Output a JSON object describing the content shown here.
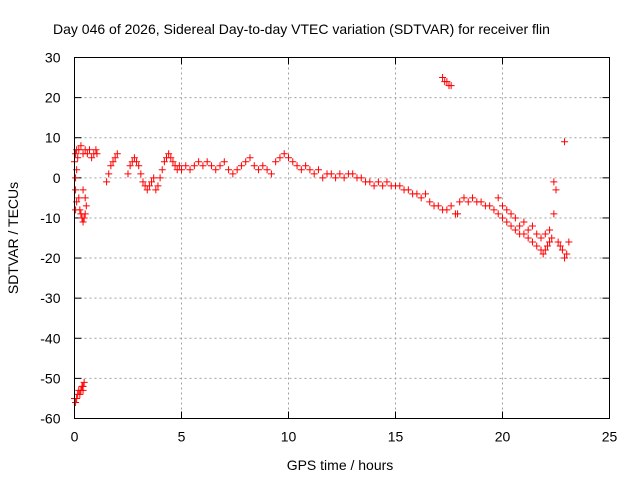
{
  "chart_data": {
    "type": "scatter",
    "title": "Day 046 of 2026, Sidereal Day-to-day VTEC variation (SDTVAR) for receiver flin",
    "xlabel": "GPS time / hours",
    "ylabel": "SDTVAR / TECUs",
    "xlim": [
      0,
      25
    ],
    "ylim": [
      -60,
      30
    ],
    "grid": true,
    "x_ticks": [
      "0",
      "5",
      "10",
      "15",
      "20",
      "25"
    ],
    "y_ticks": [
      "30",
      "20",
      "10",
      "0",
      "-10",
      "-20",
      "-30",
      "-40",
      "-50",
      "-60"
    ],
    "marker": "+",
    "color": "#ff0000",
    "series": [
      {
        "name": "SDTVAR",
        "points": [
          [
            0.0,
            4
          ],
          [
            0.05,
            6
          ],
          [
            0.1,
            7
          ],
          [
            0.15,
            5
          ],
          [
            0.05,
            0
          ],
          [
            0.05,
            -3
          ],
          [
            0.05,
            -8
          ],
          [
            0.1,
            -6
          ],
          [
            0.1,
            2
          ],
          [
            0.2,
            7
          ],
          [
            0.3,
            8
          ],
          [
            0.4,
            6
          ],
          [
            0.5,
            7
          ],
          [
            0.6,
            6
          ],
          [
            0.7,
            7
          ],
          [
            0.8,
            5
          ],
          [
            0.9,
            6
          ],
          [
            1.0,
            7
          ],
          [
            1.05,
            6
          ],
          [
            0.2,
            -5
          ],
          [
            0.25,
            -8
          ],
          [
            0.3,
            -9
          ],
          [
            0.35,
            -10
          ],
          [
            0.4,
            -11
          ],
          [
            0.45,
            -10
          ],
          [
            0.5,
            -9
          ],
          [
            0.55,
            -7
          ],
          [
            0.5,
            -5
          ],
          [
            0.4,
            -3
          ],
          [
            0.0,
            -55
          ],
          [
            0.05,
            -56
          ],
          [
            0.1,
            -55
          ],
          [
            0.15,
            -54
          ],
          [
            0.2,
            -53
          ],
          [
            0.25,
            -54
          ],
          [
            0.3,
            -53
          ],
          [
            0.35,
            -52
          ],
          [
            0.4,
            -52
          ],
          [
            0.45,
            -51
          ],
          [
            0.4,
            -53
          ],
          [
            1.5,
            -1
          ],
          [
            1.6,
            1
          ],
          [
            1.7,
            3
          ],
          [
            1.8,
            4
          ],
          [
            1.9,
            5
          ],
          [
            2.0,
            6
          ],
          [
            2.5,
            1
          ],
          [
            2.6,
            3
          ],
          [
            2.7,
            4
          ],
          [
            2.8,
            5
          ],
          [
            2.9,
            4
          ],
          [
            3.0,
            3
          ],
          [
            3.1,
            1
          ],
          [
            3.2,
            -1
          ],
          [
            3.3,
            -2
          ],
          [
            3.4,
            -3
          ],
          [
            3.5,
            -2
          ],
          [
            3.6,
            -1
          ],
          [
            3.7,
            0
          ],
          [
            3.8,
            -3
          ],
          [
            3.9,
            -2
          ],
          [
            4.0,
            0
          ],
          [
            4.1,
            2
          ],
          [
            4.2,
            4
          ],
          [
            4.3,
            5
          ],
          [
            4.4,
            6
          ],
          [
            4.5,
            5
          ],
          [
            4.6,
            4
          ],
          [
            4.7,
            3
          ],
          [
            4.8,
            2
          ],
          [
            4.9,
            3
          ],
          [
            5.0,
            2
          ],
          [
            5.2,
            3
          ],
          [
            5.4,
            2
          ],
          [
            5.6,
            3
          ],
          [
            5.8,
            4
          ],
          [
            6.0,
            3
          ],
          [
            6.2,
            4
          ],
          [
            6.4,
            3
          ],
          [
            6.6,
            2
          ],
          [
            6.8,
            3
          ],
          [
            7.0,
            4
          ],
          [
            7.2,
            2
          ],
          [
            7.4,
            1
          ],
          [
            7.6,
            2
          ],
          [
            7.8,
            3
          ],
          [
            8.0,
            4
          ],
          [
            8.2,
            5
          ],
          [
            8.4,
            3
          ],
          [
            8.6,
            2
          ],
          [
            8.8,
            3
          ],
          [
            9.0,
            2
          ],
          [
            9.2,
            1
          ],
          [
            9.4,
            4
          ],
          [
            9.6,
            5
          ],
          [
            9.8,
            6
          ],
          [
            10.0,
            5
          ],
          [
            10.2,
            4
          ],
          [
            10.4,
            3
          ],
          [
            10.6,
            2
          ],
          [
            10.8,
            3
          ],
          [
            11.0,
            2
          ],
          [
            11.2,
            1
          ],
          [
            11.4,
            2
          ],
          [
            11.6,
            0
          ],
          [
            11.8,
            1
          ],
          [
            12.0,
            1
          ],
          [
            12.2,
            0
          ],
          [
            12.4,
            1
          ],
          [
            12.6,
            0
          ],
          [
            12.8,
            1
          ],
          [
            13.0,
            1
          ],
          [
            13.2,
            0
          ],
          [
            13.4,
            0
          ],
          [
            13.6,
            -1
          ],
          [
            13.8,
            -1
          ],
          [
            14.0,
            -2
          ],
          [
            14.2,
            -1
          ],
          [
            14.4,
            -2
          ],
          [
            14.6,
            -1
          ],
          [
            14.8,
            -2
          ],
          [
            15.0,
            -2
          ],
          [
            15.2,
            -2
          ],
          [
            15.4,
            -3
          ],
          [
            15.6,
            -3
          ],
          [
            15.8,
            -4
          ],
          [
            16.0,
            -4
          ],
          [
            16.2,
            -5
          ],
          [
            16.4,
            -4
          ],
          [
            16.6,
            -6
          ],
          [
            16.8,
            -7
          ],
          [
            17.0,
            -7
          ],
          [
            17.2,
            -8
          ],
          [
            17.4,
            -8
          ],
          [
            17.6,
            -7
          ],
          [
            17.8,
            -9
          ],
          [
            17.9,
            -9
          ],
          [
            17.2,
            25
          ],
          [
            17.3,
            24
          ],
          [
            17.4,
            24
          ],
          [
            17.5,
            23
          ],
          [
            17.6,
            23
          ],
          [
            18.0,
            -6
          ],
          [
            18.2,
            -5
          ],
          [
            18.4,
            -6
          ],
          [
            18.6,
            -5
          ],
          [
            18.8,
            -6
          ],
          [
            19.0,
            -6
          ],
          [
            19.2,
            -7
          ],
          [
            19.4,
            -7
          ],
          [
            19.6,
            -8
          ],
          [
            19.8,
            -9
          ],
          [
            20.0,
            -10
          ],
          [
            20.2,
            -11
          ],
          [
            20.4,
            -12
          ],
          [
            20.6,
            -13
          ],
          [
            20.8,
            -14
          ],
          [
            21.0,
            -14
          ],
          [
            21.2,
            -15
          ],
          [
            21.4,
            -16
          ],
          [
            21.6,
            -17
          ],
          [
            21.8,
            -18
          ],
          [
            21.9,
            -19
          ],
          [
            22.0,
            -18
          ],
          [
            22.1,
            -17
          ],
          [
            22.2,
            -16
          ],
          [
            22.3,
            -15
          ],
          [
            22.4,
            -9
          ],
          [
            22.4,
            -1
          ],
          [
            22.5,
            -3
          ],
          [
            22.6,
            -16
          ],
          [
            22.7,
            -17
          ],
          [
            22.8,
            -18
          ],
          [
            22.9,
            -20
          ],
          [
            23.0,
            -19
          ],
          [
            23.1,
            -16
          ],
          [
            19.8,
            -5
          ],
          [
            20.0,
            -7
          ],
          [
            20.2,
            -8
          ],
          [
            20.4,
            -9
          ],
          [
            20.6,
            -10
          ],
          [
            20.8,
            -12
          ],
          [
            21.0,
            -11
          ],
          [
            21.2,
            -13
          ],
          [
            21.4,
            -12
          ],
          [
            21.6,
            -14
          ],
          [
            21.8,
            -15
          ],
          [
            22.0,
            -14
          ],
          [
            22.2,
            -13
          ],
          [
            22.9,
            9
          ]
        ]
      }
    ]
  }
}
